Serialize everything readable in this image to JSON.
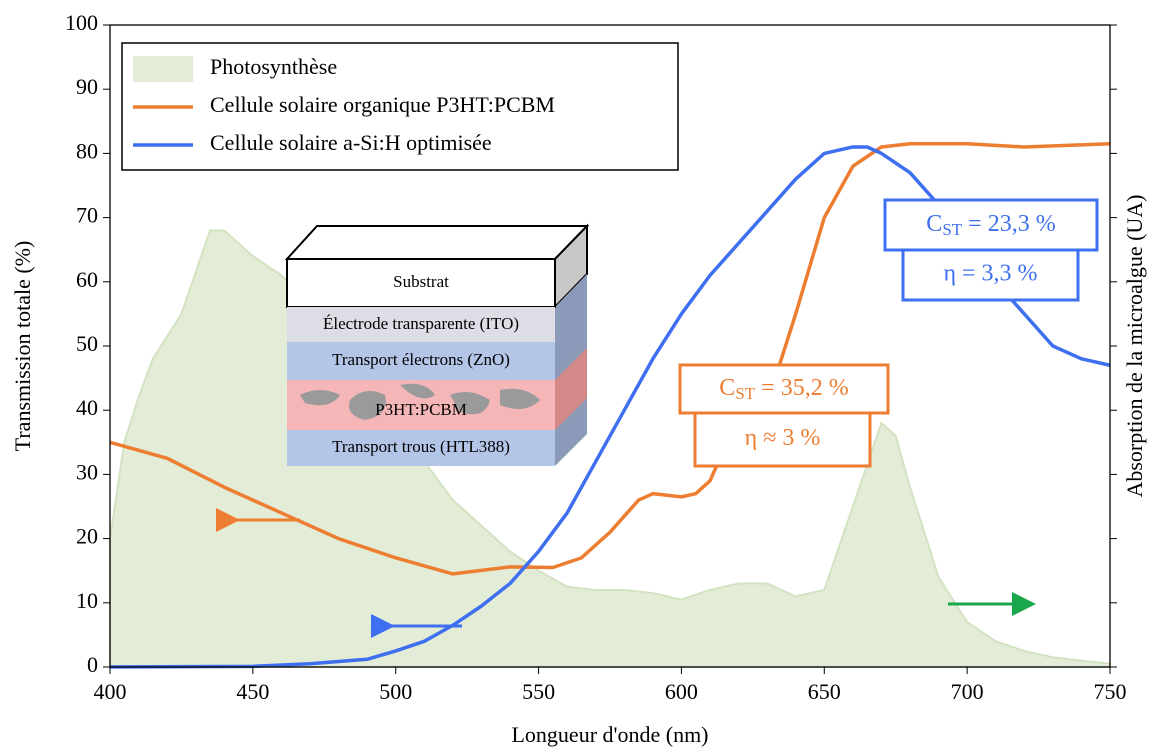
{
  "chart_data": {
    "type": "line",
    "xlabel": "Longueur d'onde (nm)",
    "ylabel": "Transmission totale (%)",
    "y2label": "Absorption de la microalgue (UA)",
    "xlim": [
      400,
      750
    ],
    "xticks": [
      400,
      450,
      500,
      550,
      600,
      650,
      700,
      750
    ],
    "ylim": [
      0,
      100
    ],
    "yticks": [
      0,
      10,
      20,
      30,
      40,
      50,
      60,
      70,
      80,
      90,
      100
    ],
    "y2lim": [
      0,
      100
    ],
    "legend": "upper left",
    "series": [
      {
        "name": "Photosynthèse",
        "type": "area",
        "axis": "y2",
        "color": "#e2ecd6",
        "x": [
          400,
          405,
          410,
          415,
          425,
          435,
          440,
          450,
          460,
          470,
          480,
          490,
          500,
          510,
          520,
          530,
          540,
          550,
          560,
          570,
          580,
          590,
          600,
          610,
          620,
          630,
          640,
          650,
          660,
          670,
          675,
          680,
          690,
          700,
          710,
          720,
          730,
          740,
          750
        ],
        "values": [
          20,
          35,
          42,
          48,
          55,
          68,
          68,
          64,
          61,
          57,
          52,
          45,
          38,
          32,
          26,
          22,
          18,
          15,
          12.5,
          12,
          12,
          11.5,
          10.5,
          12,
          13,
          13,
          11,
          12,
          25,
          38,
          36,
          28,
          14,
          7,
          4,
          2.5,
          1.5,
          1,
          0.5
        ]
      },
      {
        "name": "Cellule solaire organique P3HT:PCBM",
        "type": "line",
        "color": "#ed7d31",
        "x": [
          400,
          420,
          440,
          460,
          480,
          500,
          520,
          540,
          555,
          565,
          575,
          585,
          590,
          600,
          605,
          610,
          615,
          620,
          625,
          630,
          640,
          650,
          660,
          670,
          680,
          700,
          720,
          750
        ],
        "values": [
          35,
          32.5,
          28,
          24,
          20,
          17,
          14.5,
          15.6,
          15.5,
          17,
          21,
          26,
          27,
          26.5,
          27,
          29,
          34,
          36,
          38,
          41,
          55,
          70,
          78,
          81,
          81.5,
          81.5,
          81,
          81.5
        ]
      },
      {
        "name": "Cellule solaire a-Si:H optimisée",
        "type": "line",
        "color": "#3e6ff0",
        "x": [
          400,
          450,
          470,
          490,
          500,
          510,
          520,
          530,
          540,
          550,
          560,
          570,
          580,
          590,
          600,
          610,
          620,
          630,
          640,
          650,
          660,
          665,
          670,
          680,
          690,
          700,
          710,
          720,
          730,
          740,
          750
        ],
        "values": [
          0,
          0.1,
          0.5,
          1.2,
          2.5,
          4,
          6.5,
          9.5,
          13,
          18,
          24,
          32,
          40,
          48,
          55,
          61,
          66,
          71,
          76,
          80,
          81,
          81,
          80,
          77,
          72,
          66,
          60,
          55,
          50,
          48,
          47
        ]
      }
    ],
    "annotations": [
      {
        "main": "C",
        "sub": "ST",
        "rest": " = 23,3 %",
        "color": "#3e6ff0"
      },
      {
        "text": "η = 3,3 %",
        "color": "#3e6ff0"
      },
      {
        "main": "C",
        "sub": "ST",
        "rest": " = 35,2 %",
        "color": "#ed7d31"
      },
      {
        "text": "η ≈ 3 %",
        "color": "#ed7d31"
      }
    ],
    "inset": {
      "layers": [
        "Substrat",
        "Électrode transparente (ITO)",
        "Transport électrons (ZnO)",
        "P3HT:PCBM",
        "Transport trous (HTL388)"
      ]
    }
  }
}
